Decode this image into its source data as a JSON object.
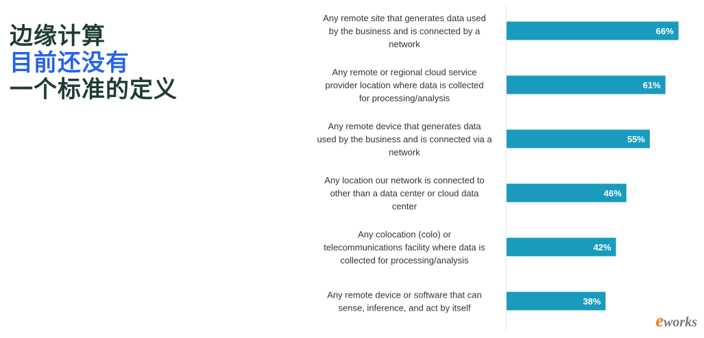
{
  "title": {
    "line1": "边缘计算",
    "line2": "目前还没有",
    "line3": "一个标准的定义"
  },
  "colors": {
    "bar": "#1a9bbd",
    "title_dark": "#1f3b36",
    "title_blue": "#2563eb"
  },
  "logo": {
    "mark": "e",
    "text": "works"
  },
  "chart_data": {
    "type": "bar",
    "orientation": "horizontal",
    "categories": [
      "Any remote site that generates data used by the business and is connected by a network",
      "Any remote or regional cloud service provider location where data is collected for processing/analysis",
      "Any remote device that generates data used by the business and is connected via a network",
      "Any location our network is connected to other than a data center or cloud data center",
      "Any colocation (colo) or telecommunications facility where data is collected for processing/analysis",
      "Any remote device or software that can sense, inference, and act by itself"
    ],
    "category_lines": [
      [
        "Any remote site that generates data used",
        "by the business and is connected by a",
        "network"
      ],
      [
        "Any remote or regional cloud service",
        "provider location where data is collected",
        "for processing/analysis"
      ],
      [
        "Any remote device that generates data",
        "used by the business and is connected via a",
        "network"
      ],
      [
        "Any location our network is connected to",
        "other than a data center or cloud data",
        "center"
      ],
      [
        "Any colocation (colo) or",
        "telecommunications facility where data is",
        "collected for processing/analysis"
      ],
      [
        "Any remote device or software that can",
        "sense, inference, and act by itself"
      ]
    ],
    "values": [
      66,
      61,
      55,
      46,
      42,
      38
    ],
    "value_labels": [
      "66%",
      "61%",
      "55%",
      "46%",
      "42%",
      "38%"
    ],
    "xlim": [
      0,
      100
    ],
    "grid": false
  }
}
